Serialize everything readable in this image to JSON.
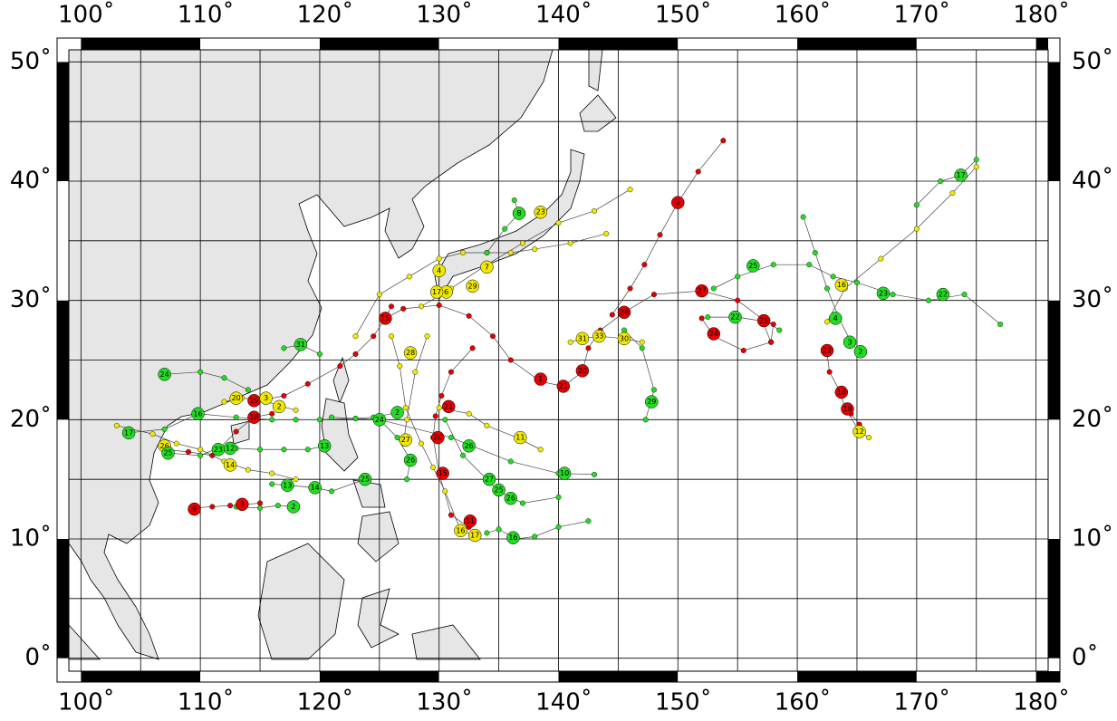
{
  "map": {
    "xlim": [
      98,
      182
    ],
    "ylim": [
      -2,
      52
    ],
    "grid_step": 5,
    "xticks": [
      {
        "value": 100,
        "label": "100˚"
      },
      {
        "value": 110,
        "label": "110˚"
      },
      {
        "value": 120,
        "label": "120˚"
      },
      {
        "value": 130,
        "label": "130˚"
      },
      {
        "value": 140,
        "label": "140˚"
      },
      {
        "value": 150,
        "label": "150˚"
      },
      {
        "value": 160,
        "label": "160˚"
      },
      {
        "value": 170,
        "label": "170˚"
      },
      {
        "value": 180,
        "label": "180˚"
      }
    ],
    "yticks": [
      {
        "value": 0,
        "label": "0˚"
      },
      {
        "value": 10,
        "label": "10˚"
      },
      {
        "value": 20,
        "label": "20˚"
      },
      {
        "value": 30,
        "label": "30˚"
      },
      {
        "value": 40,
        "label": "40˚"
      },
      {
        "value": 50,
        "label": "50˚"
      }
    ]
  },
  "tracks": [
    {
      "color": "#e60000",
      "lon": [
        153.8,
        151.7,
        150,
        148.5,
        147.2,
        146,
        144.5
      ],
      "lat": [
        43.4,
        40.8,
        38.2,
        35.5,
        33,
        31,
        28.8
      ],
      "markers": [
        {
          "lon": 150,
          "lat": 38.2,
          "label": "3"
        }
      ]
    },
    {
      "color": "#e60000",
      "lon": [
        125.5,
        127,
        130,
        132.5,
        134.5,
        136,
        138.5,
        140.4,
        142,
        142.5,
        143.5,
        145.5,
        148,
        152,
        155,
        157,
        157.8
      ],
      "lat": [
        28.5,
        29.3,
        29.6,
        28.7,
        27,
        25,
        23.2,
        22.8,
        24,
        26,
        27.5,
        29,
        30.5,
        30.8,
        30,
        28.5,
        26.5
      ],
      "markers": [
        {
          "lon": 138.5,
          "lat": 23.4,
          "label": "1"
        },
        {
          "lon": 140.4,
          "lat": 22.8,
          "label": "21"
        },
        {
          "lon": 142,
          "lat": 24.1,
          "label": "20"
        },
        {
          "lon": 152,
          "lat": 30.8,
          "label": "27"
        },
        {
          "lon": 145.5,
          "lat": 29,
          "label": "28"
        }
      ]
    },
    {
      "color": "#e60000",
      "lon": [
        152,
        153,
        155.5,
        157.8,
        158,
        157
      ],
      "lat": [
        28.5,
        27,
        25.8,
        26.5,
        28,
        28.5
      ],
      "markers": [
        {
          "lon": 153,
          "lat": 27.2,
          "label": "24"
        },
        {
          "lon": 157.2,
          "lat": 28.3,
          "label": "25"
        }
      ]
    },
    {
      "color": "#e60000",
      "lon": [
        162.5,
        162.7,
        163.5,
        164,
        164.5,
        165.2
      ],
      "lat": [
        25.5,
        24,
        22.5,
        21,
        20.5,
        19.6
      ],
      "markers": [
        {
          "lon": 162.5,
          "lat": 25.8,
          "label": "22"
        },
        {
          "lon": 163.7,
          "lat": 22.3,
          "label": "18"
        },
        {
          "lon": 164.2,
          "lat": 20.9,
          "label": "19"
        }
      ]
    },
    {
      "color": "#e60000",
      "lon": [
        132.5,
        131,
        130,
        129.5,
        129.7,
        130.2,
        131,
        132.8
      ],
      "lat": [
        11,
        12,
        15.5,
        18.5,
        20.3,
        22,
        24,
        26
      ],
      "markers": [
        {
          "lon": 132.6,
          "lat": 11.5,
          "label": "11"
        },
        {
          "lon": 130.3,
          "lat": 15.5,
          "label": "15"
        },
        {
          "lon": 129.9,
          "lat": 18.5,
          "label": "20"
        },
        {
          "lon": 130.8,
          "lat": 21.1,
          "label": "21"
        }
      ]
    },
    {
      "color": "#e60000",
      "lon": [
        109.5,
        111,
        112.5,
        113.8,
        115
      ],
      "lat": [
        12.6,
        12.7,
        12.8,
        12.9,
        13
      ],
      "markers": [
        {
          "lon": 109.5,
          "lat": 12.5,
          "label": "9"
        },
        {
          "lon": 113.5,
          "lat": 12.9,
          "label": "3"
        }
      ]
    },
    {
      "color": "#e60000",
      "lon": [
        114.5,
        117,
        119,
        121.7,
        123,
        124.5,
        125.5,
        126
      ],
      "lat": [
        21.5,
        22,
        23,
        24.5,
        25.5,
        27,
        28.5,
        29.5
      ],
      "markers": [
        {
          "lon": 114.5,
          "lat": 21.6,
          "label": "19"
        },
        {
          "lon": 125.5,
          "lat": 28.5,
          "label": "15"
        }
      ]
    },
    {
      "color": "#e60000",
      "lon": [
        107,
        109,
        111,
        113,
        114.5,
        116
      ],
      "lat": [
        17.5,
        17.3,
        17,
        19,
        20.2,
        20.5
      ],
      "markers": [
        {
          "lon": 114.5,
          "lat": 20.2,
          "label": "18"
        }
      ]
    },
    {
      "color": "#f0e800",
      "lon": [
        128.5,
        131,
        134,
        137,
        140,
        143,
        146
      ],
      "lat": [
        29.5,
        31,
        33,
        34.8,
        36.5,
        37.5,
        39.3
      ],
      "markers": [
        {
          "lon": 138.5,
          "lat": 37.4,
          "label": "23"
        }
      ]
    },
    {
      "color": "#f0e800",
      "lon": [
        123,
        125,
        127.5,
        130,
        132,
        134,
        136,
        138,
        141,
        144
      ],
      "lat": [
        27,
        30.5,
        32,
        33.5,
        34,
        34,
        34,
        34.3,
        34.8,
        35.6
      ],
      "markers": [
        {
          "lon": 130,
          "lat": 32.5,
          "label": "4"
        },
        {
          "lon": 134,
          "lat": 32.8,
          "label": "7"
        },
        {
          "lon": 130.6,
          "lat": 30.7,
          "label": "6"
        },
        {
          "lon": 129.8,
          "lat": 30.7,
          "label": "17"
        },
        {
          "lon": 132.8,
          "lat": 31.2,
          "label": "29"
        }
      ]
    },
    {
      "color": "#f0e800",
      "lon": [
        133,
        131.8,
        130.5,
        129.5,
        128.5,
        127.2,
        126.7,
        126
      ],
      "lat": [
        10.3,
        10.7,
        14,
        16,
        18,
        21,
        24.5,
        27
      ],
      "markers": [
        {
          "lon": 131.8,
          "lat": 10.7,
          "label": "16"
        },
        {
          "lon": 133,
          "lat": 10.3,
          "label": "17"
        }
      ]
    },
    {
      "color": "#f0e800",
      "lon": [
        162.5,
        164,
        167,
        170,
        173,
        175
      ],
      "lat": [
        28.2,
        31,
        33.5,
        36,
        39,
        41.2
      ],
      "markers": [
        {
          "lon": 163.7,
          "lat": 31.3,
          "label": "16"
        }
      ]
    },
    {
      "color": "#f0e800",
      "lon": [
        164,
        165.2,
        166
      ],
      "lat": [
        21,
        19,
        18.5
      ],
      "markers": [
        {
          "lon": 165.2,
          "lat": 19,
          "label": "12"
        }
      ]
    },
    {
      "color": "#f0e800",
      "lon": [
        141,
        142,
        143.4,
        145.5,
        147
      ],
      "lat": [
        26.5,
        26.8,
        27,
        26.8,
        26.5
      ],
      "markers": [
        {
          "lon": 142,
          "lat": 26.8,
          "label": "31"
        },
        {
          "lon": 143.4,
          "lat": 27,
          "label": "33"
        },
        {
          "lon": 145.5,
          "lat": 26.8,
          "label": "30"
        }
      ]
    },
    {
      "color": "#f0e800",
      "lon": [
        103,
        106,
        108,
        110,
        112,
        114,
        116,
        118
      ],
      "lat": [
        19.5,
        18.8,
        18,
        17.5,
        16.5,
        15.8,
        15.5,
        15
      ],
      "markers": [
        {
          "lon": 112.5,
          "lat": 16.2,
          "label": "14"
        },
        {
          "lon": 107,
          "lat": 17.8,
          "label": "26"
        }
      ]
    },
    {
      "color": "#f0e800",
      "lon": [
        130,
        132.5,
        134,
        136.5,
        138.5
      ],
      "lat": [
        21,
        20.5,
        19.5,
        18.5,
        17.5
      ],
      "markers": [
        {
          "lon": 136.8,
          "lat": 18.5,
          "label": "11"
        }
      ]
    },
    {
      "color": "#f0e800",
      "lon": [
        127,
        127.3,
        128,
        129
      ],
      "lat": [
        18,
        20,
        24,
        27
      ],
      "markers": [
        {
          "lon": 127.2,
          "lat": 18.3,
          "label": "27"
        },
        {
          "lon": 127.6,
          "lat": 25.6,
          "label": "28"
        }
      ]
    },
    {
      "color": "#f0e800",
      "lon": [
        112,
        113.5,
        115,
        116.5,
        118
      ],
      "lat": [
        21.5,
        21.8,
        21.7,
        21.2,
        20.8
      ],
      "markers": [
        {
          "lon": 113,
          "lat": 21.8,
          "label": "20"
        },
        {
          "lon": 115.5,
          "lat": 21.8,
          "label": "3"
        },
        {
          "lon": 116.6,
          "lat": 21.1,
          "label": "2"
        }
      ]
    },
    {
      "color": "#22dd22",
      "lon": [
        153,
        155,
        158,
        161,
        163,
        165,
        168,
        171,
        174,
        177
      ],
      "lat": [
        31,
        32,
        33,
        33,
        32,
        31.5,
        30.5,
        30,
        30.5,
        28
      ],
      "markers": [
        {
          "lon": 156.3,
          "lat": 32.9,
          "label": "25"
        },
        {
          "lon": 167.2,
          "lat": 30.6,
          "label": "23"
        },
        {
          "lon": 172.2,
          "lat": 30.5,
          "label": "22"
        }
      ]
    },
    {
      "color": "#22dd22",
      "lon": [
        160.5,
        161.5,
        162.5,
        163.5,
        164.5,
        165.3
      ],
      "lat": [
        37,
        34,
        31,
        28.5,
        26.5,
        25.5
      ],
      "markers": [
        {
          "lon": 163.2,
          "lat": 28.5,
          "label": "4"
        },
        {
          "lon": 164.4,
          "lat": 26.5,
          "label": "3"
        },
        {
          "lon": 165.3,
          "lat": 25.7,
          "label": "2"
        }
      ]
    },
    {
      "color": "#22dd22",
      "lon": [
        145.5,
        147,
        148,
        147.3
      ],
      "lat": [
        27.5,
        26,
        22.5,
        20
      ],
      "markers": [
        {
          "lon": 147.8,
          "lat": 21.5,
          "label": "29"
        }
      ]
    },
    {
      "color": "#22dd22",
      "lon": [
        152.5,
        155,
        157.5,
        158.5
      ],
      "lat": [
        28.6,
        28.6,
        28.2,
        27.5
      ],
      "markers": [
        {
          "lon": 154.8,
          "lat": 28.6,
          "label": "22"
        }
      ]
    },
    {
      "color": "#22dd22",
      "lon": [
        125,
        131,
        136,
        140,
        143
      ],
      "lat": [
        20,
        18.5,
        16.5,
        15.5,
        15.4
      ],
      "markers": [
        {
          "lon": 140.5,
          "lat": 15.5,
          "label": "10"
        },
        {
          "lon": 132.5,
          "lat": 17.8,
          "label": "26"
        }
      ]
    },
    {
      "color": "#22dd22",
      "lon": [
        130.5,
        132,
        134,
        135,
        137,
        140
      ],
      "lat": [
        20,
        17,
        15,
        14,
        13,
        13.5
      ],
      "markers": [
        {
          "lon": 134.2,
          "lat": 15,
          "label": "27"
        },
        {
          "lon": 135,
          "lat": 14.1,
          "label": "25"
        },
        {
          "lon": 136,
          "lat": 13.4,
          "label": "26"
        }
      ]
    },
    {
      "color": "#22dd22",
      "lon": [
        134,
        135,
        136.5,
        138,
        140,
        142.5
      ],
      "lat": [
        10.5,
        10.8,
        10,
        10.2,
        11,
        11.5
      ],
      "markers": [
        {
          "lon": 136.2,
          "lat": 10.1,
          "label": "16"
        }
      ]
    },
    {
      "color": "#22dd22",
      "lon": [
        170,
        172,
        173.7,
        175
      ],
      "lat": [
        38,
        40,
        40.5,
        41.8
      ],
      "markers": [
        {
          "lon": 173.7,
          "lat": 40.5,
          "label": "17"
        }
      ]
    },
    {
      "color": "#22dd22",
      "lon": [
        134,
        135.5,
        136.7,
        136.3
      ],
      "lat": [
        34,
        36,
        37.3,
        38.4
      ],
      "markers": [
        {
          "lon": 136.7,
          "lat": 37.3,
          "label": "8"
        }
      ]
    },
    {
      "color": "#22dd22",
      "lon": [
        104,
        107,
        109.8,
        113,
        116,
        118,
        120,
        123,
        125
      ],
      "lat": [
        18.9,
        19.2,
        20.5,
        20.2,
        20,
        20,
        20,
        20.1,
        20
      ],
      "markers": [
        {
          "lon": 104,
          "lat": 18.9,
          "label": "17"
        },
        {
          "lon": 109.8,
          "lat": 20.5,
          "label": "16"
        },
        {
          "lon": 125,
          "lat": 20,
          "label": "24"
        }
      ]
    },
    {
      "color": "#22dd22",
      "lon": [
        107,
        110,
        112,
        114
      ],
      "lat": [
        23.8,
        24,
        23.5,
        22.5
      ],
      "markers": [
        {
          "lon": 107,
          "lat": 23.8,
          "label": "24"
        }
      ]
    },
    {
      "color": "#22dd22",
      "lon": [
        107.3,
        110,
        111.2,
        113,
        115,
        117,
        119,
        120.4
      ],
      "lat": [
        17.2,
        17,
        17.5,
        17.6,
        17.5,
        17.5,
        17.5,
        17.8
      ],
      "markers": [
        {
          "lon": 107.3,
          "lat": 17.2,
          "label": "25"
        },
        {
          "lon": 111.5,
          "lat": 17.5,
          "label": "23"
        },
        {
          "lon": 112.5,
          "lat": 17.6,
          "label": "12"
        },
        {
          "lon": 120.4,
          "lat": 17.8,
          "label": "13"
        }
      ]
    },
    {
      "color": "#22dd22",
      "lon": [
        116,
        117.3,
        119.6,
        121,
        123.8
      ],
      "lat": [
        14.6,
        14.5,
        14.3,
        14,
        15
      ],
      "markers": [
        {
          "lon": 117.3,
          "lat": 14.5,
          "label": "13"
        },
        {
          "lon": 119.6,
          "lat": 14.3,
          "label": "14"
        },
        {
          "lon": 123.8,
          "lat": 15,
          "label": "25"
        }
      ]
    },
    {
      "color": "#22dd22",
      "lon": [
        121,
        123,
        124.5,
        126.5
      ],
      "lat": [
        20.2,
        20.1,
        20.2,
        20.6
      ],
      "markers": [
        {
          "lon": 126.5,
          "lat": 20.6,
          "label": "2"
        }
      ]
    },
    {
      "color": "#22dd22",
      "lon": [
        113,
        115,
        116.5,
        117.8
      ],
      "lat": [
        12.7,
        12.6,
        12.8,
        12.7
      ],
      "markers": [
        {
          "lon": 117.8,
          "lat": 12.7,
          "label": "2"
        }
      ]
    },
    {
      "color": "#22dd22",
      "lon": [
        117,
        118.4,
        120
      ],
      "lat": [
        26,
        26.3,
        25.5
      ],
      "markers": [
        {
          "lon": 118.4,
          "lat": 26.3,
          "label": "31"
        }
      ]
    },
    {
      "color": "#22dd22",
      "lon": [
        125,
        126.5,
        127.6,
        127.3
      ],
      "lat": [
        20,
        18.5,
        16.6,
        15
      ],
      "markers": [
        {
          "lon": 127.6,
          "lat": 16.6,
          "label": "26"
        }
      ]
    }
  ]
}
